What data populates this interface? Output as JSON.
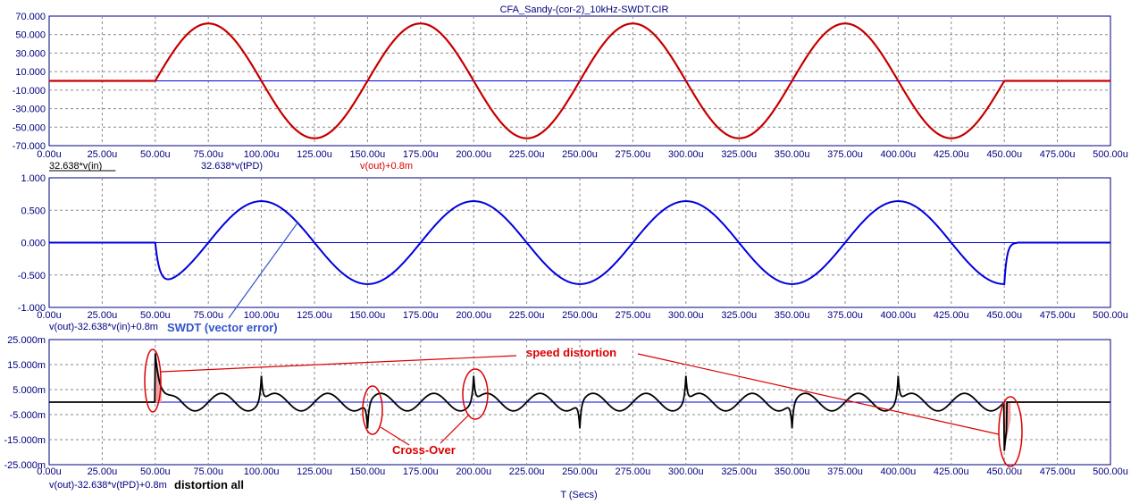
{
  "title": "CFA_Sandy-(cor-2)_10kHz-SWDT.CIR",
  "x_axis_label": "T (Secs)",
  "colors": {
    "axis": "#000080",
    "red": "#dd0000",
    "blue": "#0000dd",
    "black": "#000000",
    "grid": "#8a8a8a"
  },
  "chart_data": [
    {
      "type": "line",
      "x_ticks": [
        "0.00u",
        "25.00u",
        "50.00u",
        "75.00u",
        "100.00u",
        "125.00u",
        "150.00u",
        "175.00u",
        "200.00u",
        "225.00u",
        "250.00u",
        "275.00u",
        "300.00u",
        "325.00u",
        "350.00u",
        "375.00u",
        "400.00u",
        "425.00u",
        "450.00u",
        "475.00u",
        "500.00u"
      ],
      "y_ticks": [
        "70.000",
        "50.000",
        "30.000",
        "10.000",
        "-10.000",
        "-30.000",
        "-50.000",
        "-70.000"
      ],
      "xlim": [
        0,
        500
      ],
      "ylim": [
        -70,
        70
      ],
      "trace_labels": [
        "32.638*v(in)",
        "32.638*v(tPD)",
        "v(out)+0.8m"
      ],
      "signal": {
        "shape": "sine",
        "start": 50,
        "end": 450,
        "period": 100,
        "amplitude": 62
      }
    },
    {
      "type": "line",
      "x_ticks": [
        "0.00u",
        "25.00u",
        "50.00u",
        "75.00u",
        "100.00u",
        "125.00u",
        "150.00u",
        "175.00u",
        "200.00u",
        "225.00u",
        "250.00u",
        "275.00u",
        "300.00u",
        "325.00u",
        "350.00u",
        "375.00u",
        "400.00u",
        "425.00u",
        "450.00u",
        "475.00u",
        "500.00u"
      ],
      "y_ticks": [
        "1.000",
        "0.500",
        "0.000",
        "-0.500",
        "-1.000"
      ],
      "xlim": [
        0,
        500
      ],
      "ylim": [
        -1,
        1
      ],
      "trace_labels": [
        "v(out)-32.638*v(in)+0.8m"
      ],
      "signal": {
        "shape": "lagged-sine",
        "start": 50,
        "end": 450,
        "period": 100,
        "amplitude": 0.64
      }
    },
    {
      "type": "line",
      "x_ticks": [
        "0.00u",
        "25.00u",
        "50.00u",
        "75.00u",
        "100.00u",
        "125.00u",
        "150.00u",
        "175.00u",
        "200.00u",
        "225.00u",
        "250.00u",
        "275.00u",
        "300.00u",
        "325.00u",
        "350.00u",
        "375.00u",
        "400.00u",
        "425.00u",
        "450.00u",
        "475.00u",
        "500.00u"
      ],
      "y_ticks": [
        "25.000m",
        "15.000m",
        "5.000m",
        "-5.000m",
        "-15.000m",
        "-25.000m"
      ],
      "xlim": [
        0,
        500
      ],
      "ylim": [
        -25,
        25
      ],
      "trace_labels": [
        "v(out)-32.638*v(tPD)+0.8m"
      ],
      "spikes": [
        {
          "x": 50,
          "y": 19.5
        },
        {
          "x": 100,
          "y": 10.5
        },
        {
          "x": 150,
          "y": -10.5
        },
        {
          "x": 200,
          "y": 10.5
        },
        {
          "x": 250,
          "y": -10.5
        },
        {
          "x": 300,
          "y": 10.5
        },
        {
          "x": 350,
          "y": -10.5
        },
        {
          "x": 400,
          "y": 10.5
        },
        {
          "x": 450,
          "y": -19.5
        }
      ],
      "ripple_amplitude": 3.5
    }
  ],
  "annotations": {
    "swdt": "SWDT (vector error)",
    "speed": "speed distortion",
    "crossover": "Cross-Over",
    "distortion_all": "distortion all"
  }
}
